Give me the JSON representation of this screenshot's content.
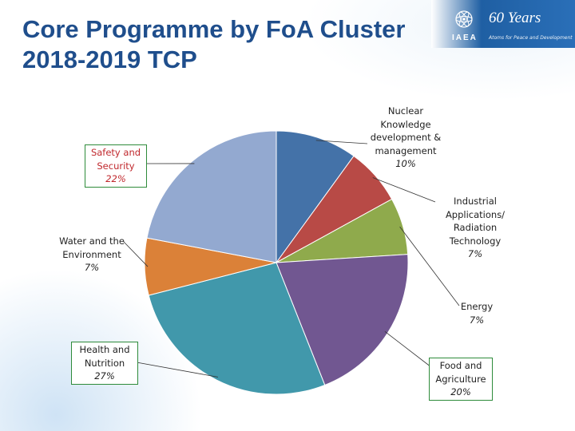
{
  "header": {
    "title_line1": "Core Programme by FoA Cluster",
    "title_line2": "2018-2019 TCP"
  },
  "logo": {
    "org": "IAEA",
    "anniversary": "60 Years",
    "tagline": "Atoms for Peace and Development",
    "icon": "iaea-emblem-icon"
  },
  "colors": {
    "title": "#1f4e8c",
    "header_band": "#2a6fb8"
  },
  "chart_data": {
    "type": "pie",
    "title": "Core Programme by FoA Cluster 2018-2019 TCP",
    "start": "12 o'clock",
    "direction": "clockwise",
    "slices": [
      {
        "label": [
          "Nuclear",
          "Knowledge",
          "development &",
          "management"
        ],
        "pct_text": "10%",
        "value": 10,
        "color": "#4472a8"
      },
      {
        "label": [
          "Industrial",
          "Applications/",
          "Radiation",
          "Technology"
        ],
        "pct_text": "7%",
        "value": 7,
        "color": "#b84a46"
      },
      {
        "label": [
          "Energy"
        ],
        "pct_text": "7%",
        "value": 7,
        "color": "#8faa4c"
      },
      {
        "label": [
          "Food and",
          "Agriculture"
        ],
        "pct_text": "20%",
        "value": 20,
        "color": "#715791"
      },
      {
        "label": [
          "Health and",
          "Nutrition"
        ],
        "pct_text": "27%",
        "value": 27,
        "color": "#4198ab"
      },
      {
        "label": [
          "Water and the",
          "Environment"
        ],
        "pct_text": "7%",
        "value": 7,
        "color": "#db8138"
      },
      {
        "label": [
          "Safety and",
          "Security"
        ],
        "pct_text": "22%",
        "value": 22,
        "color": "#93a9d0"
      }
    ]
  }
}
